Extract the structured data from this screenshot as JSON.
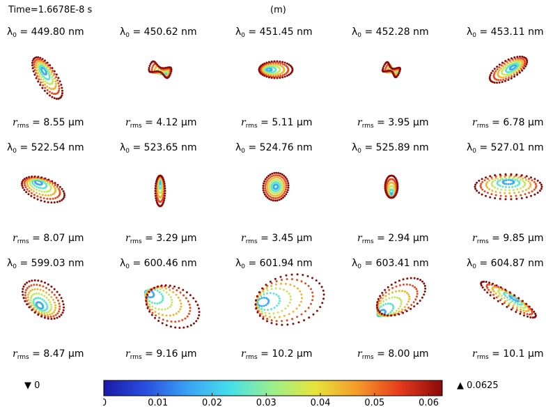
{
  "header": {
    "time_label": "Time=1.6678E-8 s",
    "unit_label": "(m)"
  },
  "chart_data": {
    "type": "scatter",
    "description_kind": "spot diagram grid",
    "rows": [
      [
        {
          "lambda": "= 449.80 nm",
          "rms": "= 8.55 μm",
          "shape": "skew-long"
        },
        {
          "lambda": "= 450.62 nm",
          "rms": "= 4.12 μm",
          "shape": "twist"
        },
        {
          "lambda": "= 451.45 nm",
          "rms": "= 5.11 μm",
          "shape": "teardrop"
        },
        {
          "lambda": "= 452.28 nm",
          "rms": "= 3.95 μm",
          "shape": "twist-small"
        },
        {
          "lambda": "= 453.11 nm",
          "rms": "= 6.78 μm",
          "shape": "skew-right"
        }
      ],
      [
        {
          "lambda": "= 522.54 nm",
          "rms": "= 8.07 μm",
          "shape": "dome"
        },
        {
          "lambda": "= 523.65 nm",
          "rms": "= 3.29 μm",
          "shape": "vertical-oval"
        },
        {
          "lambda": "= 524.76 nm",
          "rms": "= 3.45 μm",
          "shape": "concentric"
        },
        {
          "lambda": "= 525.89 nm",
          "rms": "= 2.94 μm",
          "shape": "drop"
        },
        {
          "lambda": "= 527.01 nm",
          "rms": "= 9.85 μm",
          "shape": "bowl"
        }
      ],
      [
        {
          "lambda": "= 599.03 nm",
          "rms": "= 8.47 μm",
          "shape": "fan"
        },
        {
          "lambda": "= 600.46 nm",
          "rms": "= 9.16 μm",
          "shape": "comet-right"
        },
        {
          "lambda": "= 601.94 nm",
          "rms": "= 10.2 μm",
          "shape": "comet-wide"
        },
        {
          "lambda": "= 603.41 nm",
          "rms": "= 8.00 μm",
          "shape": "comet-up"
        },
        {
          "lambda": "= 604.87 nm",
          "rms": "= 10.1 μm",
          "shape": "diagonal"
        }
      ]
    ],
    "lambda_symbol": "λ",
    "lambda_subscript": "0",
    "rms_symbol": "r",
    "rms_subscript": "rms",
    "colorbar": {
      "min_label": "0",
      "max_label": "0.0625",
      "ticks": [
        "0",
        "0.01",
        "0.02",
        "0.03",
        "0.04",
        "0.05",
        "0.06"
      ],
      "tick_values": [
        0,
        0.01,
        0.02,
        0.03,
        0.04,
        0.05,
        0.06
      ],
      "range": [
        0,
        0.0625
      ],
      "colormap": [
        "#1a1aa6",
        "#2a4fe0",
        "#3aa3f5",
        "#45e0e8",
        "#9cf08a",
        "#e6e43a",
        "#f59a2a",
        "#e53a1c",
        "#8a0a0a"
      ]
    }
  }
}
